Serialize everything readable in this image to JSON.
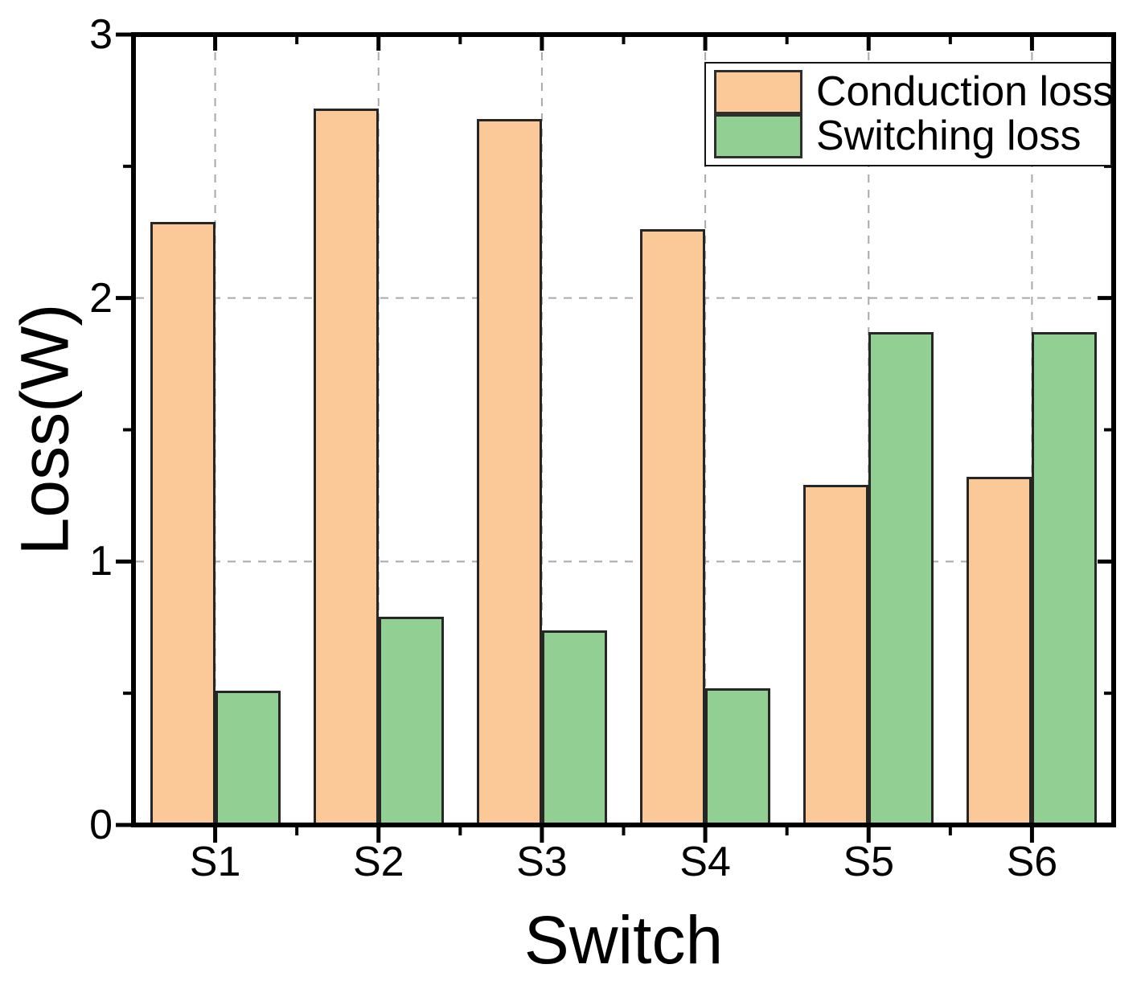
{
  "chart_data": {
    "type": "bar",
    "title": "",
    "xlabel": "Switch",
    "ylabel": "Loss(W)",
    "categories": [
      "S1",
      "S2",
      "S3",
      "S4",
      "S5",
      "S6"
    ],
    "series": [
      {
        "name": "Conduction loss",
        "color": "#FAC997",
        "values": [
          2.29,
          2.72,
          2.68,
          2.26,
          1.29,
          1.32
        ]
      },
      {
        "name": "Switching loss",
        "color": "#92CF92",
        "values": [
          0.51,
          0.79,
          0.74,
          0.52,
          1.87,
          1.87
        ]
      }
    ],
    "ylim": [
      0,
      3
    ],
    "yticks": [
      0,
      1,
      2,
      3
    ],
    "yminor_ticks": [
      0.5,
      1.5,
      2.5
    ],
    "grid": "dashed",
    "grid_on": true,
    "legend_position": "top-right",
    "colors": {
      "bar_edge": "#262626",
      "grid": "#a9a9a9",
      "axis": "#000000",
      "background": "#ffffff"
    }
  }
}
